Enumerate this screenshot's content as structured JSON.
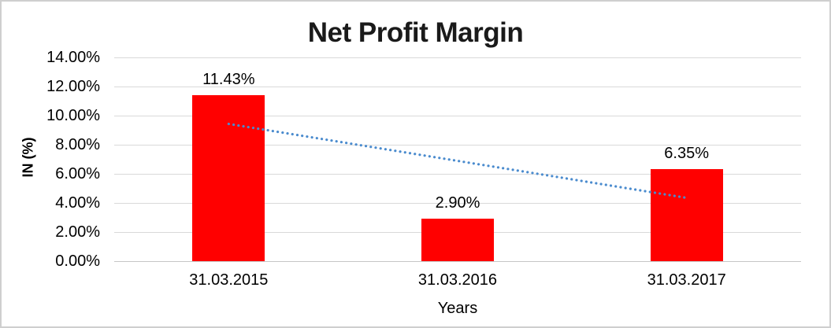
{
  "window": {
    "background": "#FFFFFF",
    "border_color": "#CFCFCF"
  },
  "chart_data": {
    "type": "bar",
    "title": "Net Profit Margin",
    "xlabel": "Years",
    "ylabel": "IN (%)",
    "categories": [
      "31.03.2015",
      "31.03.2016",
      "31.03.2017"
    ],
    "values": [
      11.43,
      2.9,
      6.35
    ],
    "value_labels": [
      "11.43%",
      "2.90%",
      "6.35%"
    ],
    "ylim": [
      0,
      14
    ],
    "yticks": [
      {
        "value": 0,
        "label": "0.00%"
      },
      {
        "value": 2,
        "label": "2.00%"
      },
      {
        "value": 4,
        "label": "4.00%"
      },
      {
        "value": 6,
        "label": "6.00%"
      },
      {
        "value": 8,
        "label": "8.00%"
      },
      {
        "value": 10,
        "label": "10.00%"
      },
      {
        "value": 12,
        "label": "12.00%"
      },
      {
        "value": 14,
        "label": "14.00%"
      }
    ],
    "grid": true,
    "legend": "none",
    "bar_color": "#FF0000",
    "gridline_color": "#D9D9D9",
    "text_color": "#000000",
    "title_color": "#1A1A1A",
    "trendline": {
      "type": "linear",
      "style": "dotted",
      "color": "#4A8BCE",
      "points": [
        {
          "category_index": 0,
          "value": 9.43
        },
        {
          "category_index": 2,
          "value": 4.35
        }
      ]
    }
  }
}
